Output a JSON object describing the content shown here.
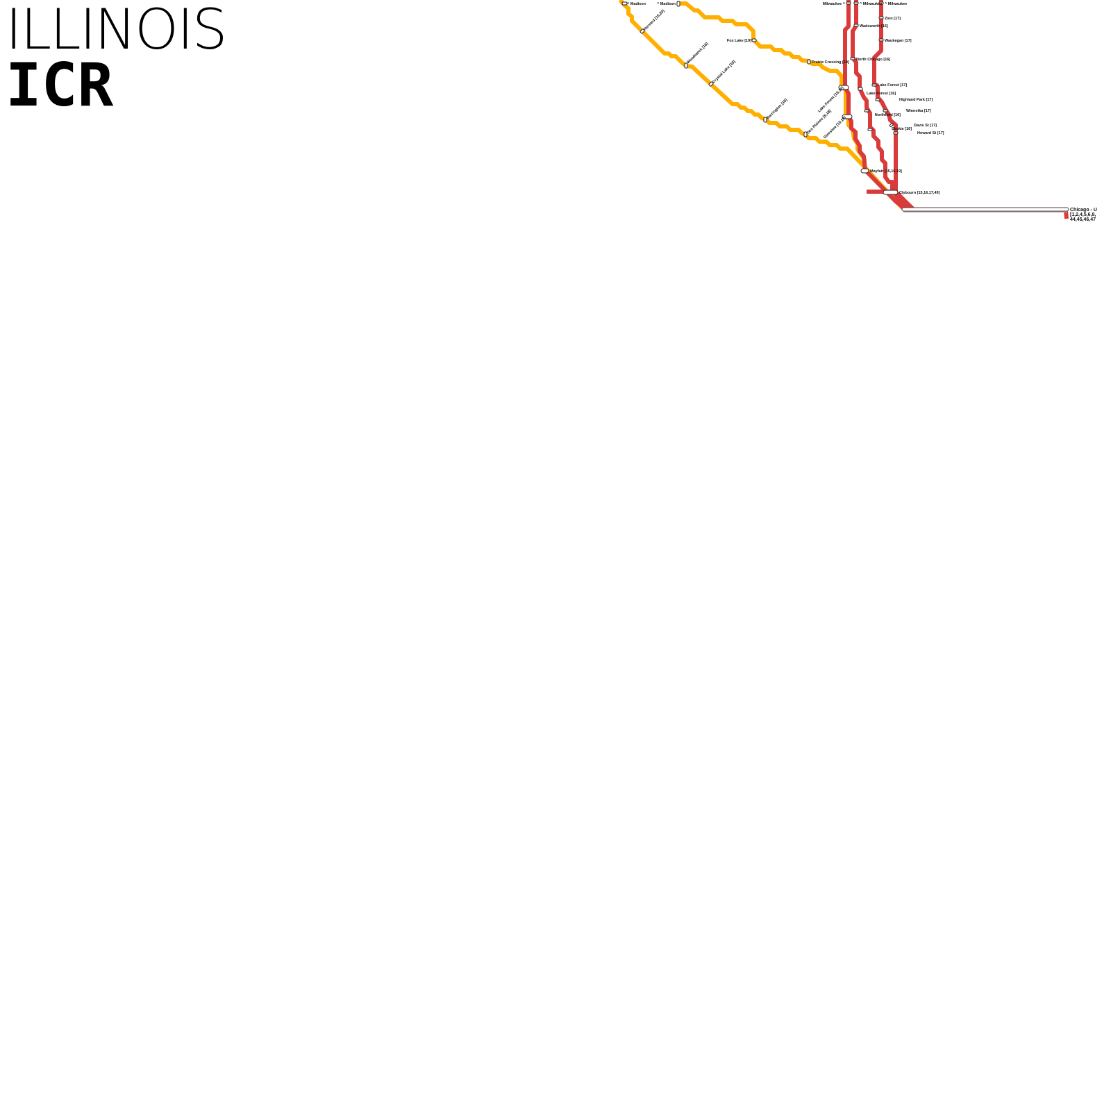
{
  "title": {
    "line1": "ILLINOIS",
    "line2": "ICR"
  },
  "colors": {
    "yellow_line": "#ffaf00",
    "red_line": "#d93a3a"
  },
  "stations": {
    "madison_a": "^ Madison",
    "madison_b": "^ Madison",
    "harvard": "Harvard [15,20]",
    "woodstock": "Woodstock [18]",
    "crystal_lake": "Crystal Lake [18]",
    "barrington": "Barrington [18]",
    "des_plaines": "Des Plaines [8,18]",
    "fox_lake": "Fox Lake [19]",
    "prairie_crossing": "Prairie Crossing [19]",
    "lake_forest_15": "Lake Forest [15,19]",
    "glenview": "Glenview [15,19]",
    "milwaukee_a": "Milwaukee ^",
    "milwaukee_b": "^ Milwaukee",
    "milwaukee_c": "^ Milwaukee",
    "wadsworth": "Wadsworth [16]",
    "zion": "Zion [17]",
    "waukegan": "Waukegan [17]",
    "north_chicago": "North Chicago [16]",
    "lake_forest_17": "Lake Forest [17]",
    "lake_forest_16": "Lake Forest [16]",
    "highland_park": "Highland Park [17]",
    "winnetka": "Winnetka [17]",
    "northfield": "Northfield [16]",
    "davis_st": "Davis St [17]",
    "skokie": "Skokie [16]",
    "howard_st": "Howard St [17]",
    "mayfair": "Mayfair [15,16,19]",
    "clybourn": "Clybourn [15,16,17,49]",
    "chicago_1": "Chicago - U",
    "chicago_2": "[1,2,4,5,6,8,",
    "chicago_3": "44,45,46,47"
  }
}
